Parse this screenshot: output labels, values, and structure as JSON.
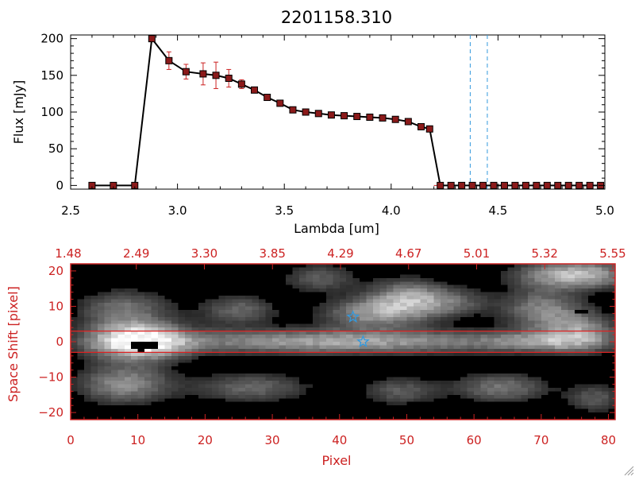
{
  "colors": {
    "data_line": "#000000",
    "marker": "#8b1a1a",
    "error_bar": "#cc2222",
    "vline": "#3399dd",
    "panel2_axis": "#cc2222",
    "star": "#3399dd",
    "band_line": "#dd2222"
  },
  "chart_data": [
    {
      "type": "line",
      "title": "2201158.310",
      "xlabel": "Lambda [um]",
      "ylabel": "Flux [mJy]",
      "xlim": [
        2.5,
        5.0
      ],
      "ylim": [
        -5,
        205
      ],
      "xticks": [
        2.5,
        3.0,
        3.5,
        4.0,
        4.5,
        5.0
      ],
      "xtick_labels": [
        "2.5",
        "3.0",
        "3.5",
        "4.0",
        "4.5",
        "5.0"
      ],
      "yticks": [
        0,
        50,
        100,
        150,
        200
      ],
      "ytick_labels": [
        "0",
        "50",
        "100",
        "150",
        "200"
      ],
      "grid": false,
      "series": [
        {
          "marker": "square",
          "x": [
            2.6,
            2.7,
            2.8,
            2.88,
            2.96,
            3.04,
            3.12,
            3.18,
            3.24,
            3.3,
            3.36,
            3.42,
            3.48,
            3.54,
            3.6,
            3.66,
            3.72,
            3.78,
            3.84,
            3.9,
            3.96,
            4.02,
            4.08,
            4.14,
            4.18,
            4.23,
            4.28,
            4.33,
            4.38,
            4.43,
            4.48,
            4.53,
            4.58,
            4.63,
            4.68,
            4.73,
            4.78,
            4.83,
            4.88,
            4.93,
            4.98
          ],
          "y": [
            0,
            0,
            0,
            200,
            170,
            155,
            152,
            150,
            146,
            138,
            130,
            120,
            112,
            103,
            100,
            98,
            96,
            95,
            94,
            93,
            92,
            90,
            87,
            80,
            77,
            0,
            0,
            0,
            0,
            0,
            0,
            0,
            0,
            0,
            0,
            0,
            0,
            0,
            0,
            0,
            0
          ],
          "yerr": [
            0,
            0,
            0,
            0,
            12,
            10,
            15,
            18,
            12,
            6,
            4,
            3,
            3,
            2,
            2,
            2,
            2,
            2,
            2,
            2,
            2,
            2,
            2,
            2,
            2,
            0,
            0,
            0,
            0,
            0,
            0,
            0,
            0,
            0,
            0,
            0,
            0,
            0,
            0,
            0,
            0
          ]
        }
      ],
      "vlines": [
        4.37,
        4.45
      ],
      "hline": 0
    },
    {
      "type": "heatmap",
      "xlabel": "Pixel",
      "ylabel": "Space Shift [pixel]",
      "xlim": [
        0,
        81
      ],
      "ylim": [
        -22,
        22
      ],
      "xticks": [
        0,
        10,
        20,
        30,
        40,
        50,
        60,
        70,
        80
      ],
      "xtick_labels": [
        "0",
        "10",
        "20",
        "30",
        "40",
        "50",
        "60",
        "70",
        "80"
      ],
      "yticks": [
        -20,
        -10,
        0,
        10,
        20
      ],
      "ytick_labels": [
        "−20",
        "−10",
        "0",
        "10",
        "20"
      ],
      "top_axis_tick_labels": [
        "1.48",
        "2.49",
        "3.30",
        "3.85",
        "4.29",
        "4.67",
        "5.01",
        "5.32",
        "5.55"
      ],
      "band_lines": [
        3,
        -3
      ],
      "star_markers": [
        {
          "x": 42.0,
          "y": 7
        },
        {
          "x": 43.5,
          "y": 0
        }
      ],
      "blobs": [
        {
          "x": 10,
          "y": 0,
          "i": 1.0,
          "sx": 5,
          "sy": 3.5
        },
        {
          "x": 40,
          "y": 0,
          "i": 0.65,
          "sx": 20,
          "sy": 2.5
        },
        {
          "x": 70,
          "y": 0,
          "i": 0.35,
          "sx": 6,
          "sy": 2
        },
        {
          "x": 8,
          "y": 9,
          "i": 0.45,
          "sx": 5,
          "sy": 4
        },
        {
          "x": 8,
          "y": -12,
          "i": 0.55,
          "sx": 5,
          "sy": 4
        },
        {
          "x": 25,
          "y": 9,
          "i": 0.4,
          "sx": 4,
          "sy": 3
        },
        {
          "x": 27,
          "y": -13,
          "i": 0.4,
          "sx": 6,
          "sy": 3
        },
        {
          "x": 37,
          "y": 18,
          "i": 0.35,
          "sx": 4,
          "sy": 3
        },
        {
          "x": 44,
          "y": 8,
          "i": 0.5,
          "sx": 5,
          "sy": 3
        },
        {
          "x": 50,
          "y": 12,
          "i": 0.6,
          "sx": 4,
          "sy": 4
        },
        {
          "x": 57,
          "y": 11,
          "i": 0.35,
          "sx": 4,
          "sy": 3
        },
        {
          "x": 49,
          "y": -14,
          "i": 0.35,
          "sx": 4,
          "sy": 3
        },
        {
          "x": 64,
          "y": -13,
          "i": 0.45,
          "sx": 5,
          "sy": 3
        },
        {
          "x": 70,
          "y": 9,
          "i": 0.5,
          "sx": 4,
          "sy": 4
        },
        {
          "x": 75,
          "y": 19,
          "i": 0.75,
          "sx": 6,
          "sy": 3
        },
        {
          "x": 76,
          "y": 3,
          "i": 0.5,
          "sx": 4,
          "sy": 4
        },
        {
          "x": 78,
          "y": -16,
          "i": 0.35,
          "sx": 3,
          "sy": 3
        }
      ],
      "dark_spots": [
        {
          "x0": 8.7,
          "x1": 12.7,
          "y0": -0.5,
          "y1": -1.5
        },
        {
          "x0": 9.9,
          "x1": 10.9,
          "y0": -1.5,
          "y1": -3.0
        },
        {
          "x0": 75.2,
          "x1": 77.4,
          "y0": 8.5,
          "y1": 7.6
        }
      ]
    }
  ]
}
